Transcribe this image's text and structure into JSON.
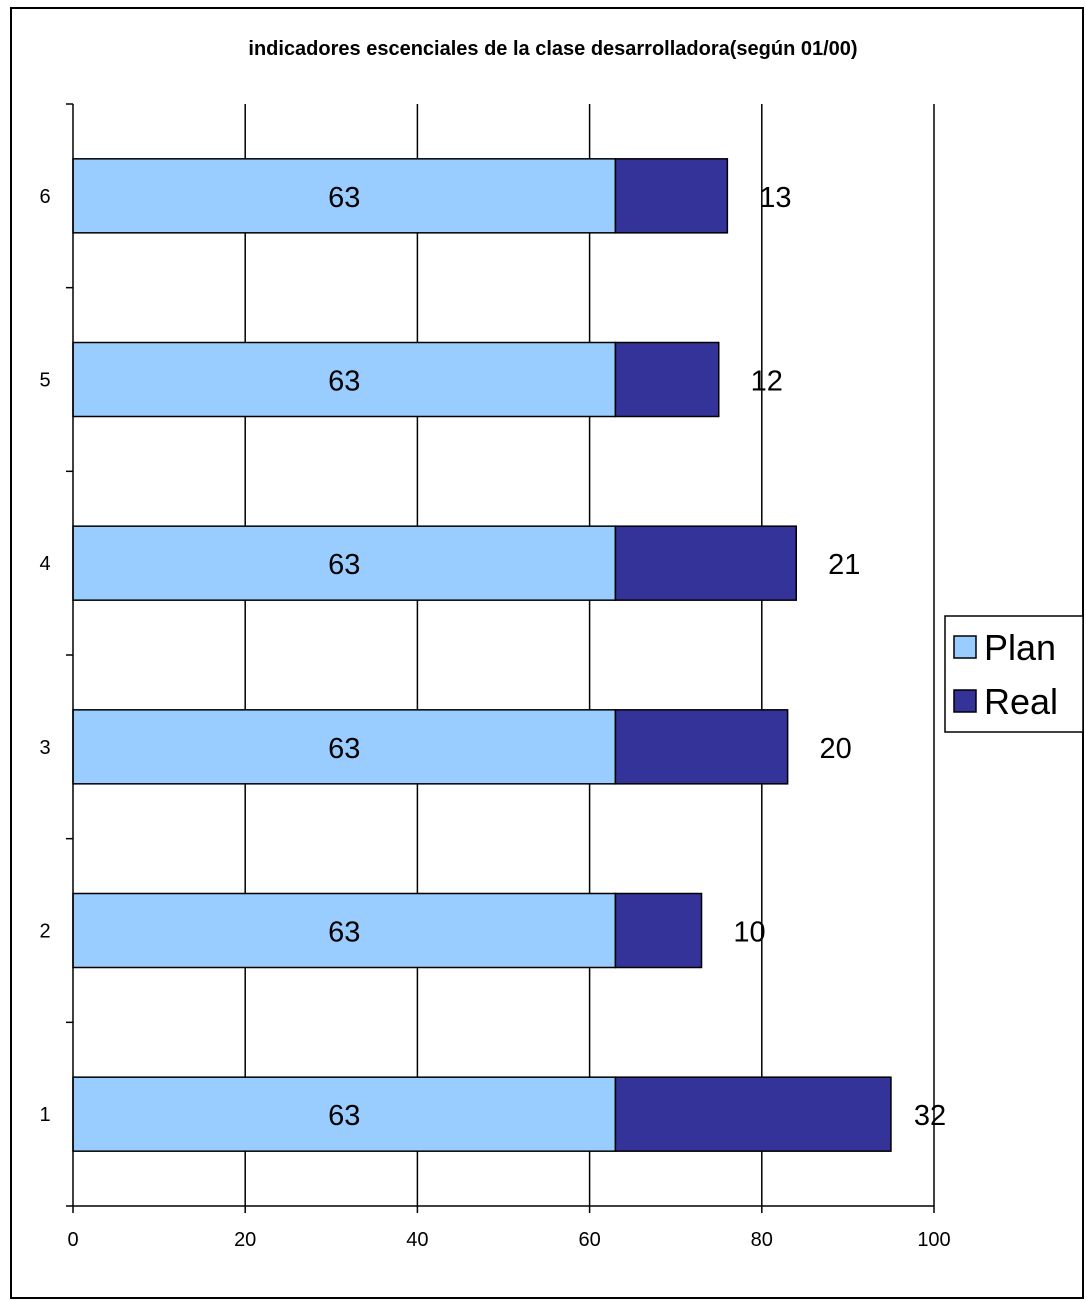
{
  "chart_data": {
    "type": "bar",
    "orientation": "horizontal",
    "stacked": true,
    "title": "indicadores escenciales de la clase desarrolladora(según 01/00)",
    "categories": [
      "1",
      "2",
      "3",
      "4",
      "5",
      "6"
    ],
    "series": [
      {
        "name": "Plan",
        "values": [
          63,
          63,
          63,
          63,
          63,
          63
        ],
        "color": "#99CCFF"
      },
      {
        "name": "Real",
        "values": [
          32,
          10,
          20,
          21,
          12,
          13
        ],
        "color": "#333399"
      }
    ],
    "xlim": [
      0,
      100
    ],
    "x_ticks": [
      "0",
      "20",
      "40",
      "60",
      "80",
      "100"
    ],
    "grid": "vertical",
    "legend": "right",
    "data_labels": true
  }
}
